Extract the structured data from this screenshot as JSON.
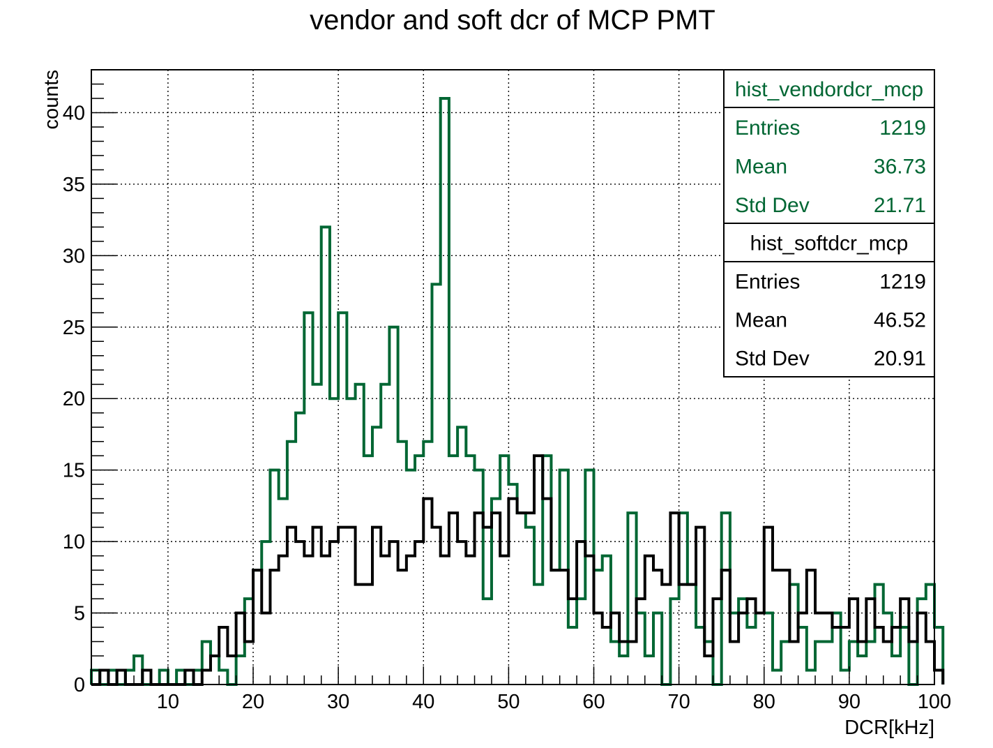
{
  "chart_data": {
    "type": "histogram",
    "title": "vendor and soft dcr of MCP PMT",
    "xlabel": "DCR[kHz]",
    "ylabel": "counts",
    "xlim": [
      1,
      100
    ],
    "ylim": [
      0,
      43
    ],
    "xticks": [
      10,
      20,
      30,
      40,
      50,
      60,
      70,
      80,
      90,
      100
    ],
    "yticks": [
      0,
      5,
      10,
      15,
      20,
      25,
      30,
      35,
      40
    ],
    "grid": true,
    "bin_width": 1,
    "x_start": 1,
    "colors": {
      "vendor": "#006633",
      "soft": "#000000"
    },
    "series": [
      {
        "name": "hist_vendordcr_mcp",
        "color": "#006633",
        "values": [
          1,
          0,
          1,
          0,
          1,
          2,
          0,
          0,
          1,
          0,
          1,
          0,
          1,
          3,
          2,
          1,
          0,
          2,
          6,
          8,
          10,
          15,
          13,
          17,
          19,
          26,
          21,
          32,
          20,
          26,
          20,
          21,
          16,
          18,
          21,
          25,
          17,
          15,
          16,
          17,
          28,
          41,
          16,
          18,
          16,
          15,
          6,
          13,
          16,
          14,
          12,
          11,
          7,
          16,
          8,
          15,
          4,
          6,
          15,
          8,
          9,
          3,
          2,
          12,
          5,
          2,
          5,
          0,
          6,
          12,
          7,
          4,
          3,
          0,
          12,
          5,
          6,
          4,
          5,
          5,
          1,
          3,
          7,
          4,
          1,
          3,
          3,
          5,
          1,
          3,
          2,
          3,
          7,
          5,
          2,
          4,
          0,
          6,
          7,
          4
        ]
      },
      {
        "name": "hist_softdcr_mcp",
        "color": "#000000",
        "values": [
          0,
          1,
          0,
          1,
          0,
          0,
          1,
          0,
          0,
          0,
          0,
          1,
          0,
          1,
          2,
          4,
          2,
          5,
          3,
          8,
          5,
          8,
          9,
          11,
          10,
          9,
          11,
          9,
          10,
          11,
          11,
          7,
          7,
          11,
          9,
          10,
          8,
          9,
          10,
          13,
          11,
          9,
          12,
          10,
          9,
          12,
          11,
          12,
          9,
          13,
          12,
          12,
          16,
          13,
          8,
          8,
          6,
          10,
          9,
          5,
          4,
          5,
          3,
          3,
          6,
          9,
          8,
          7,
          12,
          7,
          7,
          11,
          2,
          6,
          8,
          3,
          5,
          6,
          5,
          11,
          8,
          8,
          3,
          5,
          8,
          5,
          5,
          4,
          4,
          6,
          3,
          6,
          4,
          3,
          4,
          6,
          3,
          5,
          3,
          1
        ]
      }
    ],
    "stats_boxes": [
      {
        "name": "hist_vendordcr_mcp",
        "color": "#006633",
        "rows": [
          {
            "label": "Entries",
            "value": "1219"
          },
          {
            "label": "Mean",
            "value": "36.73"
          },
          {
            "label": "Std Dev",
            "value": "21.71"
          }
        ]
      },
      {
        "name": "hist_softdcr_mcp",
        "color": "#000000",
        "rows": [
          {
            "label": "Entries",
            "value": "1219"
          },
          {
            "label": "Mean",
            "value": "46.52"
          },
          {
            "label": "Std Dev",
            "value": "20.91"
          }
        ]
      }
    ]
  }
}
